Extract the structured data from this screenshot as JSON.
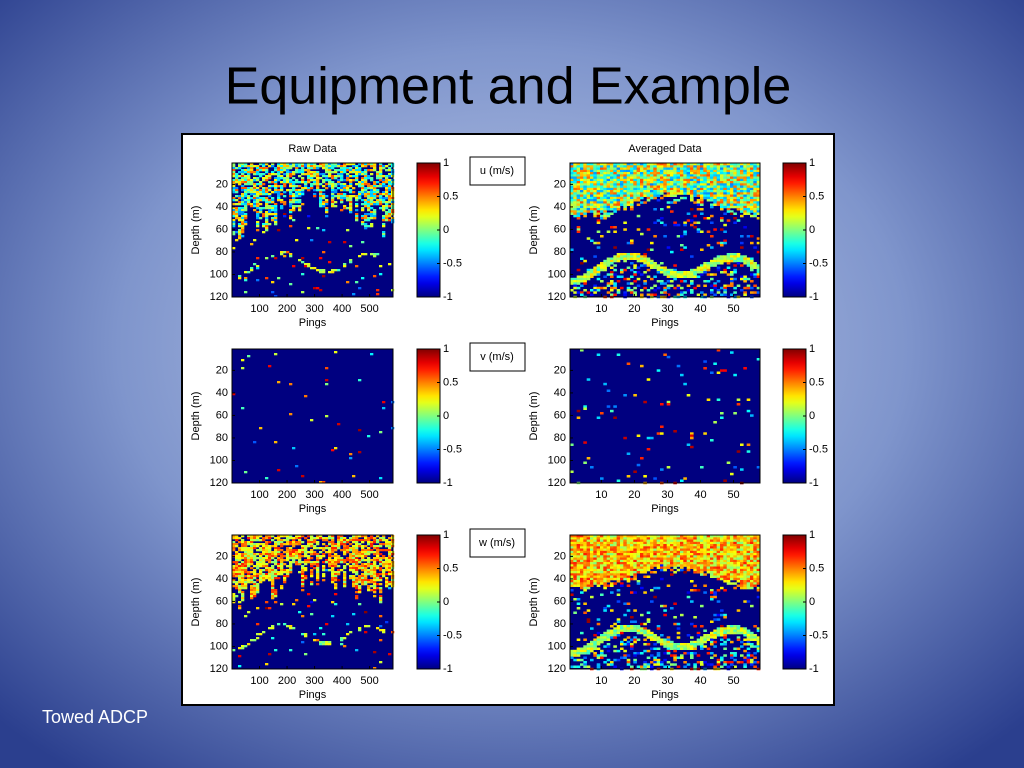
{
  "slide": {
    "title": "Equipment and Example",
    "caption": "Towed ADCP"
  },
  "chart_data": [
    {
      "type": "heatmap",
      "title": "Raw Data",
      "annotation": "u (m/s)",
      "xlabel": "Pings",
      "ylabel": "Depth (m)",
      "xlim": [
        0,
        585
      ],
      "xticks": [
        100,
        200,
        300,
        400,
        500
      ],
      "ylim": [
        1,
        120
      ],
      "yticks": [
        20,
        40,
        60,
        80,
        100,
        120
      ],
      "y_reversed": true,
      "clim": [
        -1,
        1
      ],
      "cticks": [
        1,
        0.5,
        0,
        -0.5,
        -1
      ]
    },
    {
      "type": "heatmap",
      "title": "Averaged Data",
      "xlabel": "Pings",
      "ylabel": "Depth (m)",
      "xlim": [
        0.5,
        58
      ],
      "xticks": [
        10,
        20,
        30,
        40,
        50
      ],
      "ylim": [
        1,
        120
      ],
      "yticks": [
        20,
        40,
        60,
        80,
        100,
        120
      ],
      "y_reversed": true,
      "clim": [
        -1,
        1
      ],
      "cticks": [
        1,
        0.5,
        0,
        -0.5,
        -1
      ]
    },
    {
      "type": "heatmap",
      "annotation": "v (m/s)",
      "xlabel": "Pings",
      "ylabel": "Depth (m)",
      "xlim": [
        0,
        585
      ],
      "xticks": [
        100,
        200,
        300,
        400,
        500
      ],
      "ylim": [
        1,
        120
      ],
      "yticks": [
        20,
        40,
        60,
        80,
        100,
        120
      ],
      "y_reversed": true,
      "clim": [
        -1,
        1
      ],
      "cticks": [
        1,
        0.5,
        0,
        -0.5,
        -1
      ]
    },
    {
      "type": "heatmap",
      "xlabel": "Pings",
      "ylabel": "Depth (m)",
      "xlim": [
        0.5,
        58
      ],
      "xticks": [
        10,
        20,
        30,
        40,
        50
      ],
      "ylim": [
        1,
        120
      ],
      "yticks": [
        20,
        40,
        60,
        80,
        100,
        120
      ],
      "y_reversed": true,
      "clim": [
        -1,
        1
      ],
      "cticks": [
        1,
        0.5,
        0,
        -0.5,
        -1
      ]
    },
    {
      "type": "heatmap",
      "annotation": "w (m/s)",
      "xlabel": "Pings",
      "ylabel": "Depth (m)",
      "xlim": [
        0,
        585
      ],
      "xticks": [
        100,
        200,
        300,
        400,
        500
      ],
      "ylim": [
        1,
        120
      ],
      "yticks": [
        20,
        40,
        60,
        80,
        100,
        120
      ],
      "y_reversed": true,
      "clim": [
        -1,
        1
      ],
      "cticks": [
        1,
        0.5,
        0,
        -0.5,
        -1
      ]
    },
    {
      "type": "heatmap",
      "xlabel": "Pings",
      "ylabel": "Depth (m)",
      "xlim": [
        0.5,
        58
      ],
      "xticks": [
        10,
        20,
        30,
        40,
        50
      ],
      "ylim": [
        1,
        120
      ],
      "yticks": [
        20,
        40,
        60,
        80,
        100,
        120
      ],
      "y_reversed": true,
      "clim": [
        -1,
        1
      ],
      "cticks": [
        1,
        0.5,
        0,
        -0.5,
        -1
      ]
    }
  ]
}
